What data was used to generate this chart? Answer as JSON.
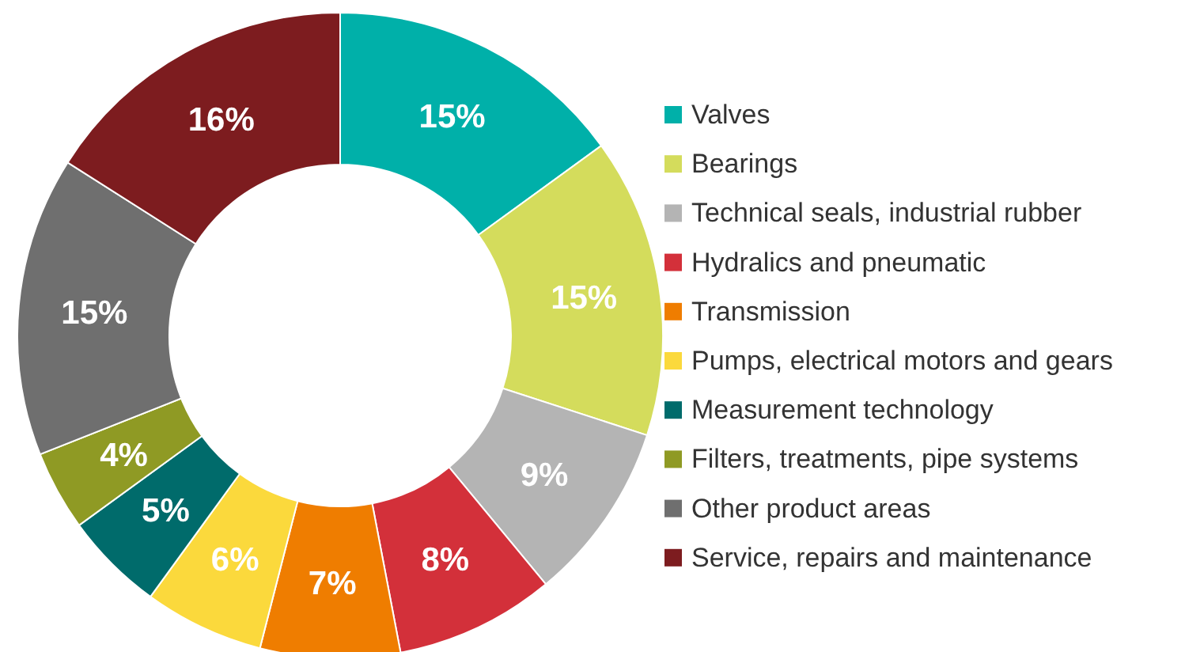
{
  "chart_data": {
    "type": "donut",
    "categories": [
      "Valves",
      "Bearings",
      "Technical seals, industrial rubber",
      "Hydralics and pneumatic",
      "Transmission",
      "Pumps, electrical motors and gears",
      "Measurement technology",
      "Filters, treatments, pipe systems",
      "Other product areas",
      "Service, repairs and maintenance"
    ],
    "values": [
      15,
      15,
      9,
      8,
      7,
      6,
      5,
      4,
      15,
      16
    ],
    "colors": [
      "#00b0a9",
      "#d4dc5c",
      "#b4b4b4",
      "#d3303a",
      "#ef7d00",
      "#fbd93c",
      "#006b6b",
      "#8f9a24",
      "#6f6f6f",
      "#7d1c1f"
    ],
    "value_labels": [
      "15%",
      "15%",
      "9%",
      "8%",
      "7%",
      "6%",
      "5%",
      "4%",
      "15%",
      "16%"
    ],
    "legend": "right"
  }
}
